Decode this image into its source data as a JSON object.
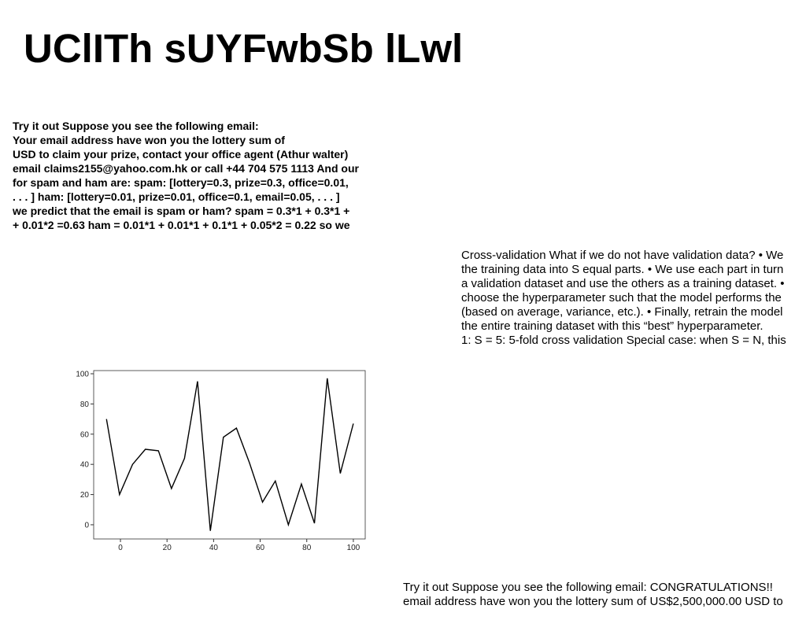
{
  "title": "UClITh sUYFwbSb lLwl",
  "block1": {
    "lines": [
      "Try it out Suppose you see the following email:",
      "Your email address have won you the lottery sum of",
      "USD to claim your prize, contact your office agent (Athur walter)",
      "email claims2155@yahoo.com.hk or call +44 704 575 1113 And our",
      "for spam and ham are: spam: [lottery=0.3, prize=0.3, office=0.01,",
      ". . . ] ham: [lottery=0.01, prize=0.01, office=0.1, email=0.05, . . . ]",
      "we predict that the email is spam or ham? spam = 0.3*1 + 0.3*1 +",
      "+ 0.01*2 =0.63 ham = 0.01*1 + 0.01*1 + 0.1*1 + 0.05*2 = 0.22 so we"
    ]
  },
  "block2": {
    "lines": [
      "Cross-validation What if we do not have validation data? • We",
      "the training data into S equal parts. • We use each part in turn",
      "a validation dataset and use the others as a training dataset. •",
      "choose the hyperparameter such that the model performs the",
      "(based on average, variance, etc.). • Finally, retrain the model",
      "the entire training dataset with this “best” hyperparameter.",
      "1: S = 5: 5-fold cross validation Special case: when S = N, this"
    ]
  },
  "block3": {
    "lines": [
      "Try it out Suppose you see the following email: CONGRATULATIONS!!",
      "email address have won you the lottery sum of US$2,500,000.00 USD to"
    ]
  },
  "chart_data": {
    "type": "line",
    "x": [
      -6,
      -0.4,
      5.2,
      10.7,
      16.3,
      21.9,
      27.5,
      33.1,
      38.6,
      44.2,
      49.8,
      55.4,
      61,
      66.5,
      72.1,
      77.7,
      83.3,
      88.8,
      94.4,
      100
    ],
    "values": [
      70,
      20,
      40,
      50,
      49,
      24,
      44,
      95,
      -4,
      58,
      64,
      41,
      15,
      29,
      0,
      27,
      1,
      97,
      34,
      67
    ],
    "color": "#000000",
    "xlim": [
      -11.5,
      105.1
    ],
    "ylim": [
      -9.4,
      102.1
    ],
    "xticks": [
      0,
      20,
      40,
      60,
      80,
      100
    ],
    "yticks": [
      0,
      20,
      40,
      60,
      80,
      100
    ]
  }
}
